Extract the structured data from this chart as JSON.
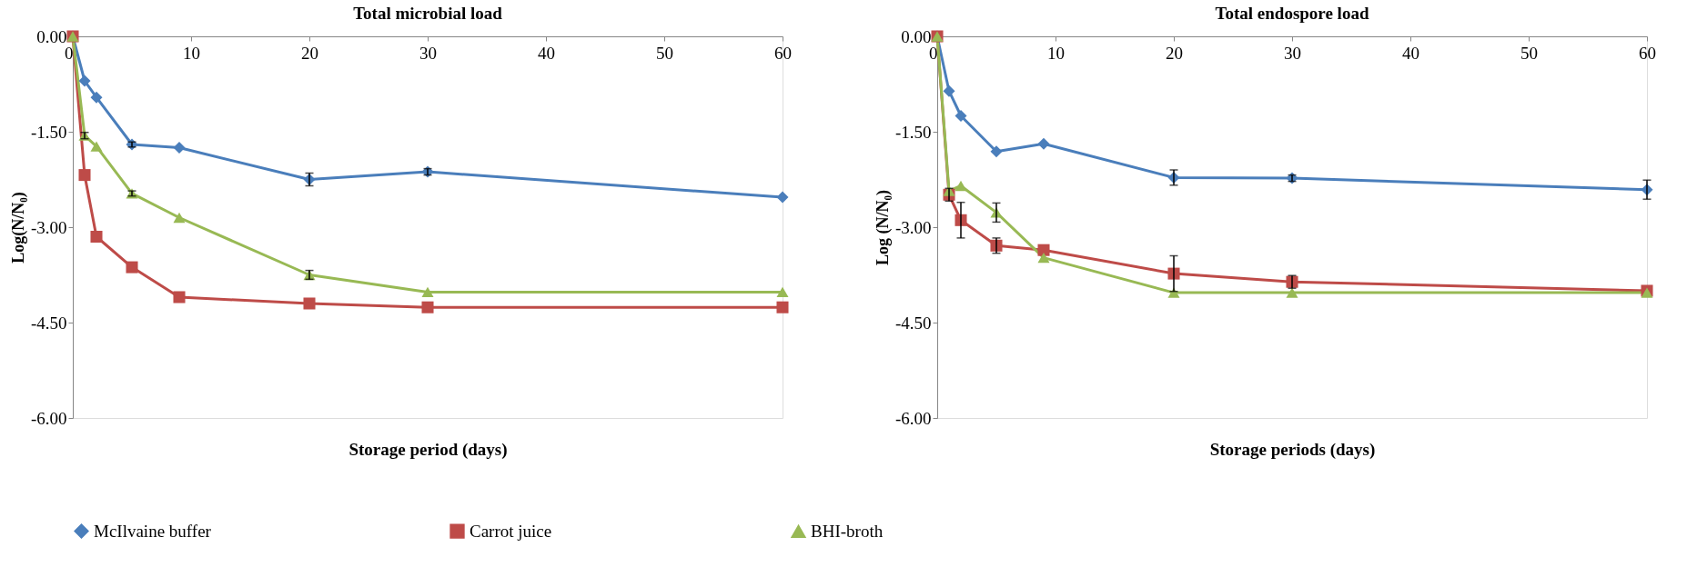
{
  "chart_data": [
    {
      "type": "line",
      "title": "Total microbial load",
      "xlabel": "Storage period (days)",
      "ylabel": "Log(N/N₀)",
      "xlim": [
        0,
        60
      ],
      "xticks": [
        0,
        10,
        20,
        30,
        40,
        50,
        60
      ],
      "ylim": [
        -6,
        0
      ],
      "yticks": [
        {
          "value": 0,
          "label": "0.00"
        },
        {
          "value": -1.5,
          "label": "-1.50"
        },
        {
          "value": -3,
          "label": "-3.00"
        },
        {
          "value": -4.5,
          "label": "-4.50"
        },
        {
          "value": -6,
          "label": "-6.00"
        }
      ],
      "grid": false,
      "legend": "bottom",
      "line_style": "solid",
      "series": [
        {
          "name": "McIlvaine buffer",
          "color": "#4a7ebb",
          "marker": "diamond",
          "x": [
            0,
            1,
            2,
            5,
            9,
            20,
            30,
            60
          ],
          "values": [
            0,
            -0.7,
            -0.96,
            -1.7,
            -1.75,
            -2.25,
            -2.13,
            -2.53
          ],
          "errors": [
            null,
            null,
            null,
            0.04,
            null,
            0.1,
            0.05,
            null
          ]
        },
        {
          "name": "Carrot juice",
          "color": "#be4b48",
          "marker": "square",
          "x": [
            0,
            1,
            2,
            5,
            9,
            20,
            30,
            60
          ],
          "values": [
            0,
            -2.18,
            -3.15,
            -3.63,
            -4.1,
            -4.2,
            -4.26,
            -4.26
          ],
          "errors": [
            null,
            null,
            null,
            null,
            null,
            null,
            null,
            null
          ]
        },
        {
          "name": "BHI-broth",
          "color": "#98b954",
          "marker": "triangle",
          "x": [
            0,
            1,
            2,
            5,
            9,
            20,
            30,
            60
          ],
          "values": [
            0,
            -1.56,
            -1.73,
            -2.47,
            -2.85,
            -3.75,
            -4.02,
            -4.02
          ],
          "errors": [
            null,
            0.05,
            null,
            0.04,
            null,
            0.07,
            null,
            null
          ]
        }
      ]
    },
    {
      "type": "line",
      "title": "Total endospore load",
      "xlabel": "Storage periods (days)",
      "ylabel": "Log (N/N₀)",
      "xlim": [
        0,
        60
      ],
      "xticks": [
        0,
        10,
        20,
        30,
        40,
        50,
        60
      ],
      "ylim": [
        -6,
        0
      ],
      "yticks": [
        {
          "value": 0,
          "label": "0.00"
        },
        {
          "value": -1.5,
          "label": "-1.50"
        },
        {
          "value": -3,
          "label": "-3.00"
        },
        {
          "value": -4.5,
          "label": "-4.50"
        },
        {
          "value": -6,
          "label": "-6.00"
        }
      ],
      "grid": false,
      "legend": "bottom",
      "line_style": "solid",
      "series": [
        {
          "name": "McIlvaine buffer",
          "color": "#4a7ebb",
          "marker": "diamond",
          "x": [
            0,
            1,
            2,
            5,
            9,
            20,
            30,
            60
          ],
          "values": [
            0,
            -0.86,
            -1.25,
            -1.81,
            -1.69,
            -2.22,
            -2.23,
            -2.41
          ],
          "errors": [
            null,
            null,
            null,
            null,
            null,
            0.12,
            0.05,
            0.15
          ]
        },
        {
          "name": "Carrot juice",
          "color": "#be4b48",
          "marker": "square",
          "x": [
            0,
            1,
            2,
            5,
            9,
            20,
            30,
            60
          ],
          "values": [
            0,
            -2.49,
            -2.89,
            -3.29,
            -3.36,
            -3.73,
            -3.86,
            -4.0
          ],
          "errors": [
            null,
            0.1,
            0.28,
            0.12,
            null,
            0.28,
            0.1,
            null
          ]
        },
        {
          "name": "BHI-broth",
          "color": "#98b954",
          "marker": "triangle",
          "x": [
            0,
            1,
            2,
            5,
            9,
            20,
            30,
            60
          ],
          "values": [
            0,
            -2.43,
            -2.35,
            -2.77,
            -3.48,
            -4.03,
            -4.03,
            -4.03
          ],
          "errors": [
            null,
            null,
            null,
            0.15,
            null,
            null,
            null,
            null
          ]
        }
      ]
    }
  ]
}
